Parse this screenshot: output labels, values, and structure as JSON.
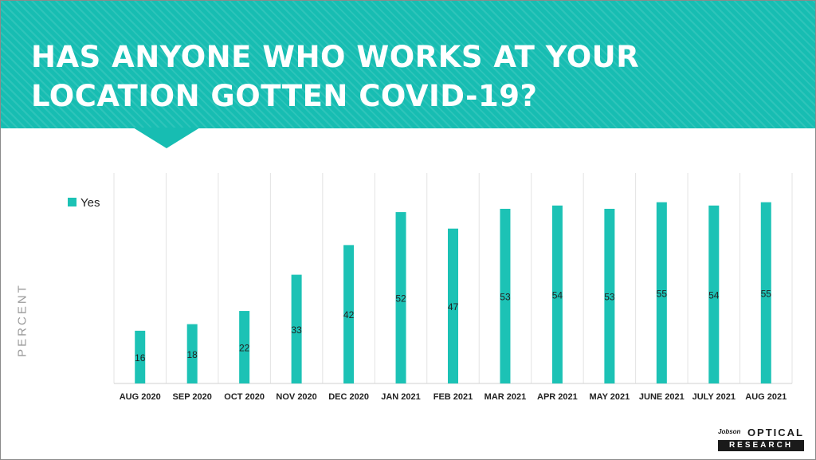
{
  "slide": {
    "title_lines": [
      "HAS ANYONE WHO WORKS AT YOUR",
      "LOCATION GOTTEN COVID-19?"
    ],
    "logo": {
      "jobson": "Jobson",
      "optical": "OPTICAL",
      "research": "RESEARCH"
    },
    "colors": {
      "accent": "#17bdb2",
      "bar": "#1cc2b5",
      "text": "#222222"
    }
  },
  "chart_data": {
    "type": "bar",
    "title": "HAS ANYONE WHO WORKS AT YOUR LOCATION GOTTEN COVID-19?",
    "xlabel": "",
    "ylabel": "PERCENT",
    "categories": [
      "AUG 2020",
      "SEP 2020",
      "OCT 2020",
      "NOV 2020",
      "DEC 2020",
      "JAN 2021",
      "FEB 2021",
      "MAR 2021",
      "APR 2021",
      "MAY 2021",
      "JUNE 2021",
      "JULY 2021",
      "AUG 2021"
    ],
    "series": [
      {
        "name": "Yes",
        "values": [
          16,
          18,
          22,
          33,
          42,
          52,
          47,
          53,
          54,
          53,
          55,
          54,
          55
        ]
      }
    ],
    "ylim": [
      0,
      60
    ],
    "data_labels": true,
    "grid": "vertical",
    "legend": "top-left"
  }
}
